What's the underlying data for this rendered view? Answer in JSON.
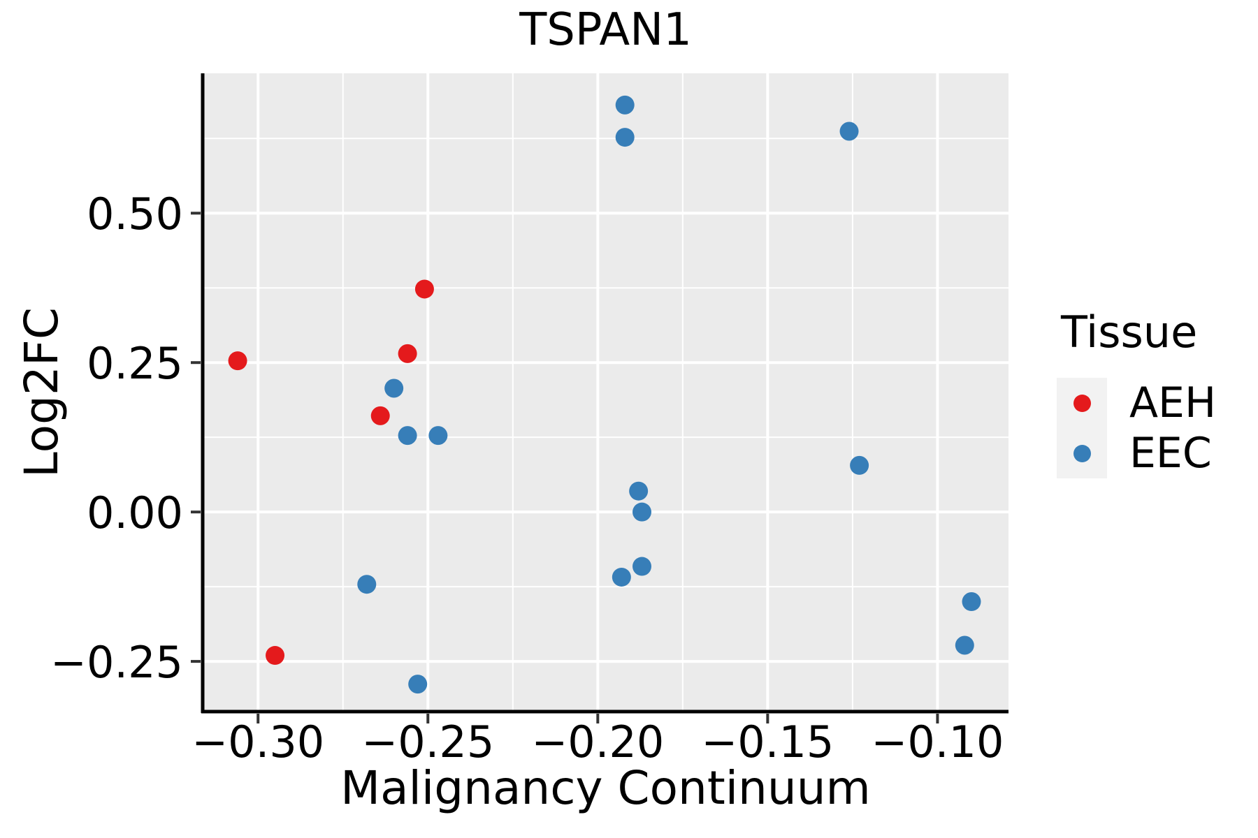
{
  "chart_data": {
    "type": "scatter",
    "title": "TSPAN1",
    "xlabel": "Malignancy Continuum",
    "ylabel": "Log2FC",
    "xlim": [
      -0.3163,
      -0.0791
    ],
    "ylim": [
      -0.334,
      0.734
    ],
    "x_ticks": [
      -0.3,
      -0.25,
      -0.2,
      -0.15,
      -0.1
    ],
    "x_tick_labels": [
      "−0.30",
      "−0.25",
      "−0.20",
      "−0.15",
      "−0.10"
    ],
    "x_minor_ticks": [
      -0.275,
      -0.225,
      -0.175,
      -0.125
    ],
    "y_ticks": [
      0.5,
      0.25,
      0.0,
      -0.25
    ],
    "y_tick_labels": [
      "0.50",
      "0.25",
      "0.00",
      "−0.25"
    ],
    "y_minor_ticks": [
      0.625,
      0.375,
      0.125,
      -0.125
    ],
    "grid": true,
    "panel_background": "#EBEBEB",
    "gridline_color": "#FFFFFF",
    "axis_line_color": "#000000",
    "tick_mark_color": "#333333",
    "legend": {
      "title": "Tissue",
      "position": "right",
      "key_background": "#F2F2F2",
      "entries": [
        {
          "label": "AEH",
          "color": "#E41A1C"
        },
        {
          "label": "EEC",
          "color": "#377EB8"
        }
      ]
    },
    "series": [
      {
        "name": "AEH",
        "color": "#E41A1C",
        "points": [
          [
            -0.306,
            0.253
          ],
          [
            -0.295,
            -0.24
          ],
          [
            -0.264,
            0.161
          ],
          [
            -0.256,
            0.265
          ],
          [
            -0.251,
            0.373
          ]
        ]
      },
      {
        "name": "EEC",
        "color": "#377EB8",
        "points": [
          [
            -0.268,
            -0.121
          ],
          [
            -0.26,
            0.207
          ],
          [
            -0.256,
            0.128
          ],
          [
            -0.253,
            -0.288
          ],
          [
            -0.247,
            0.128
          ],
          [
            -0.193,
            -0.109
          ],
          [
            -0.192,
            0.681
          ],
          [
            -0.192,
            0.627
          ],
          [
            -0.188,
            0.035
          ],
          [
            -0.187,
            0.0
          ],
          [
            -0.187,
            -0.091
          ],
          [
            -0.126,
            0.637
          ],
          [
            -0.123,
            0.078
          ],
          [
            -0.092,
            -0.223
          ],
          [
            -0.09,
            -0.15
          ]
        ]
      }
    ]
  }
}
